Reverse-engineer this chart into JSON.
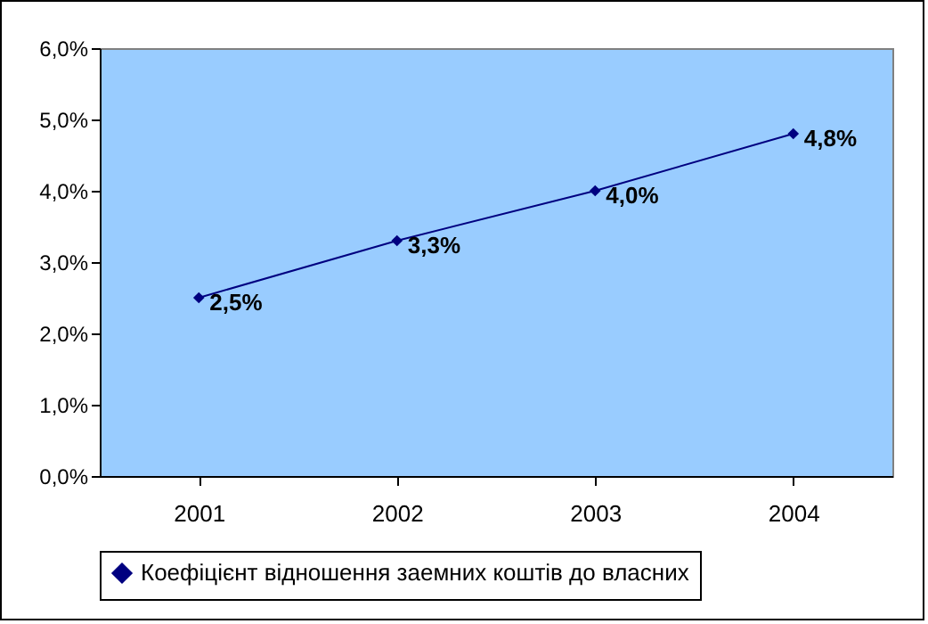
{
  "chart_data": {
    "type": "line",
    "categories": [
      "2001",
      "2002",
      "2003",
      "2004"
    ],
    "series": [
      {
        "name": "Коефіцієнт відношення заемних коштів до власних",
        "color": "#000080",
        "values": [
          2.5,
          3.3,
          4.0,
          4.8
        ],
        "value_labels": [
          "2,5%",
          "3,3%",
          "4,0%",
          "4,8%"
        ]
      }
    ],
    "ylim": [
      0,
      6
    ],
    "yticks": [
      {
        "value": 0,
        "label": "0,0%"
      },
      {
        "value": 1,
        "label": "1,0%"
      },
      {
        "value": 2,
        "label": "2,0%"
      },
      {
        "value": 3,
        "label": "3,0%"
      },
      {
        "value": 4,
        "label": "4,0%"
      },
      {
        "value": 5,
        "label": "5,0%"
      },
      {
        "value": 6,
        "label": "6,0%"
      }
    ],
    "marker": "diamond",
    "line_style": "solid",
    "legend": "bottom"
  }
}
